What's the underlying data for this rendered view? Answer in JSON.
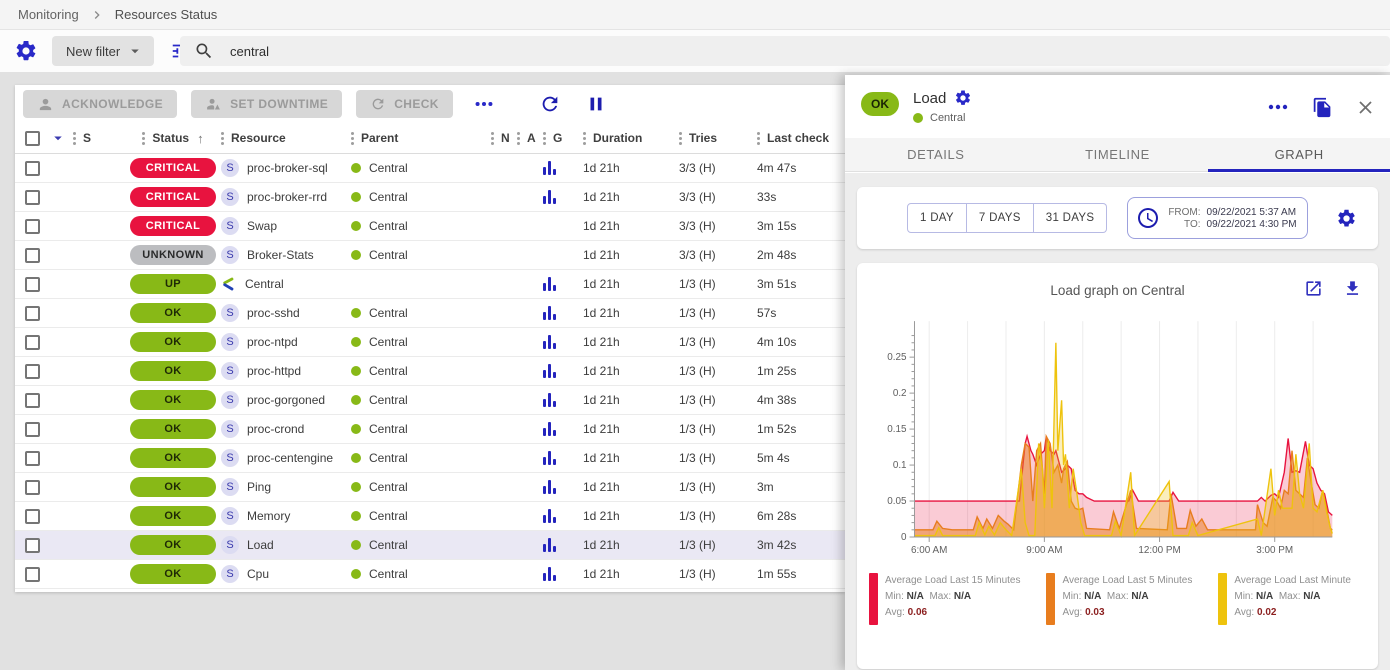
{
  "breadcrumb": {
    "items": [
      "Monitoring",
      "Resources Status"
    ]
  },
  "filter": {
    "new_filter_label": "New filter",
    "search_value": "central"
  },
  "toolbar": {
    "acknowledge": "ACKNOWLEDGE",
    "set_downtime": "SET DOWNTIME",
    "check": "CHECK",
    "more": "...",
    "icons": [
      "person-icon",
      "downtime-icon",
      "check-refresh-icon",
      "refresh-icon",
      "pause-icon"
    ]
  },
  "colors": {
    "primary_blue": "#2929c8",
    "green": "#88b917",
    "critical_red": "#e8133f",
    "unknown_gray": "#bcbdc0",
    "selected_row": "#eae8f4"
  },
  "table": {
    "headers": [
      "S",
      "Status",
      "Resource",
      "Parent",
      "N",
      "A",
      "G",
      "Duration",
      "Tries",
      "Last check"
    ],
    "sorted_column": "Status",
    "sort_direction": "asc",
    "rows": [
      {
        "status": "CRITICAL",
        "resource": "proc-broker-sql",
        "type": "service",
        "parent": "Central",
        "graph": true,
        "duration": "1d 21h",
        "tries": "3/3 (H)",
        "last_check": "4m 47s",
        "selected": false
      },
      {
        "status": "CRITICAL",
        "resource": "proc-broker-rrd",
        "type": "service",
        "parent": "Central",
        "graph": true,
        "duration": "1d 21h",
        "tries": "3/3 (H)",
        "last_check": "33s",
        "selected": false
      },
      {
        "status": "CRITICAL",
        "resource": "Swap",
        "type": "service",
        "parent": "Central",
        "graph": false,
        "duration": "1d 21h",
        "tries": "3/3 (H)",
        "last_check": "3m 15s",
        "selected": false
      },
      {
        "status": "UNKNOWN",
        "resource": "Broker-Stats",
        "type": "service",
        "parent": "Central",
        "graph": false,
        "duration": "1d 21h",
        "tries": "3/3 (H)",
        "last_check": "2m 48s",
        "selected": false
      },
      {
        "status": "UP",
        "resource": "Central",
        "type": "host",
        "parent": "",
        "graph": true,
        "duration": "1d 21h",
        "tries": "1/3 (H)",
        "last_check": "3m 51s",
        "selected": false
      },
      {
        "status": "OK",
        "resource": "proc-sshd",
        "type": "service",
        "parent": "Central",
        "graph": true,
        "duration": "1d 21h",
        "tries": "1/3 (H)",
        "last_check": "57s",
        "selected": false
      },
      {
        "status": "OK",
        "resource": "proc-ntpd",
        "type": "service",
        "parent": "Central",
        "graph": true,
        "duration": "1d 21h",
        "tries": "1/3 (H)",
        "last_check": "4m 10s",
        "selected": false
      },
      {
        "status": "OK",
        "resource": "proc-httpd",
        "type": "service",
        "parent": "Central",
        "graph": true,
        "duration": "1d 21h",
        "tries": "1/3 (H)",
        "last_check": "1m 25s",
        "selected": false
      },
      {
        "status": "OK",
        "resource": "proc-gorgoned",
        "type": "service",
        "parent": "Central",
        "graph": true,
        "duration": "1d 21h",
        "tries": "1/3 (H)",
        "last_check": "4m 38s",
        "selected": false
      },
      {
        "status": "OK",
        "resource": "proc-crond",
        "type": "service",
        "parent": "Central",
        "graph": true,
        "duration": "1d 21h",
        "tries": "1/3 (H)",
        "last_check": "1m 52s",
        "selected": false
      },
      {
        "status": "OK",
        "resource": "proc-centengine",
        "type": "service",
        "parent": "Central",
        "graph": true,
        "duration": "1d 21h",
        "tries": "1/3 (H)",
        "last_check": "5m 4s",
        "selected": false
      },
      {
        "status": "OK",
        "resource": "Ping",
        "type": "service",
        "parent": "Central",
        "graph": true,
        "duration": "1d 21h",
        "tries": "1/3 (H)",
        "last_check": "3m",
        "selected": false
      },
      {
        "status": "OK",
        "resource": "Memory",
        "type": "service",
        "parent": "Central",
        "graph": true,
        "duration": "1d 21h",
        "tries": "1/3 (H)",
        "last_check": "6m 28s",
        "selected": false
      },
      {
        "status": "OK",
        "resource": "Load",
        "type": "service",
        "parent": "Central",
        "graph": true,
        "duration": "1d 21h",
        "tries": "1/3 (H)",
        "last_check": "3m 42s",
        "selected": true
      },
      {
        "status": "OK",
        "resource": "Cpu",
        "type": "service",
        "parent": "Central",
        "graph": true,
        "duration": "1d 21h",
        "tries": "1/3 (H)",
        "last_check": "1m 55s",
        "selected": false
      }
    ]
  },
  "status_colors": {
    "CRITICAL": "#e8133f",
    "UNKNOWN": "#bcbdc0",
    "UP": "#88b917",
    "OK": "#88b917"
  },
  "panel": {
    "status": "OK",
    "title": "Load",
    "parent": "Central",
    "tabs": [
      "DETAILS",
      "TIMELINE",
      "GRAPH"
    ],
    "active_tab": "GRAPH",
    "time_buttons": [
      "1 DAY",
      "7 DAYS",
      "31 DAYS"
    ],
    "from_label": "FROM:",
    "from_value": "09/22/2021 5:37 AM",
    "to_label": "TO:",
    "to_value": "09/22/2021 4:30 PM"
  },
  "chart_data": {
    "type": "area",
    "title": "Load graph on Central",
    "x_ticks": [
      "6:00 AM",
      "9:00 AM",
      "12:00 PM",
      "3:00 PM"
    ],
    "x_tick_hours": [
      6,
      9,
      12,
      15
    ],
    "x_range_hours": [
      5.617,
      16.5
    ],
    "y_ticks": [
      0,
      0.05,
      0.1,
      0.15,
      0.2,
      0.25
    ],
    "ylim": [
      0,
      0.3
    ],
    "grid": true,
    "legend_position": "bottom",
    "stat_labels": {
      "min": "Min:",
      "max": "Max:",
      "avg": "Avg:"
    },
    "series": [
      {
        "name": "Average Load Last 15 Minutes",
        "color": "#e8133f",
        "fill_opacity": 0.22,
        "min": "N/A",
        "max": "N/A",
        "avg": "0.06",
        "points": [
          [
            5.62,
            0.05
          ],
          [
            8.35,
            0.05
          ],
          [
            8.45,
            0.105
          ],
          [
            8.5,
            0.13
          ],
          [
            8.55,
            0.14
          ],
          [
            8.65,
            0.12
          ],
          [
            8.7,
            0.115
          ],
          [
            8.8,
            0.1
          ],
          [
            8.9,
            0.115
          ],
          [
            9.0,
            0.12
          ],
          [
            9.05,
            0.14
          ],
          [
            9.15,
            0.12
          ],
          [
            9.25,
            0.115
          ],
          [
            9.3,
            0.12
          ],
          [
            9.4,
            0.1
          ],
          [
            9.45,
            0.09
          ],
          [
            9.55,
            0.095
          ],
          [
            9.6,
            0.1
          ],
          [
            9.7,
            0.095
          ],
          [
            9.8,
            0.065
          ],
          [
            9.9,
            0.06
          ],
          [
            10.0,
            0.06
          ],
          [
            10.1,
            0.055
          ],
          [
            10.3,
            0.05
          ],
          [
            11.2,
            0.05
          ],
          [
            11.3,
            0.065
          ],
          [
            11.45,
            0.05
          ],
          [
            12.25,
            0.05
          ],
          [
            12.35,
            0.062
          ],
          [
            12.5,
            0.05
          ],
          [
            14.55,
            0.05
          ],
          [
            14.65,
            0.055
          ],
          [
            14.75,
            0.05
          ],
          [
            14.9,
            0.058
          ],
          [
            15.0,
            0.06
          ],
          [
            15.1,
            0.055
          ],
          [
            15.25,
            0.09
          ],
          [
            15.35,
            0.137
          ],
          [
            15.45,
            0.09
          ],
          [
            15.55,
            0.092
          ],
          [
            15.65,
            0.09
          ],
          [
            15.8,
            0.133
          ],
          [
            15.9,
            0.1
          ],
          [
            16.0,
            0.095
          ],
          [
            16.1,
            0.075
          ],
          [
            16.2,
            0.065
          ],
          [
            16.3,
            0.06
          ],
          [
            16.4,
            0.035
          ],
          [
            16.5,
            0.03
          ]
        ]
      },
      {
        "name": "Average Load Last 5 Minutes",
        "color": "#e87d1e",
        "fill_opacity": 0.5,
        "min": "N/A",
        "max": "N/A",
        "avg": "0.03",
        "points": [
          [
            5.62,
            0.01
          ],
          [
            6.1,
            0.01
          ],
          [
            6.2,
            0.022
          ],
          [
            6.35,
            0.012
          ],
          [
            6.6,
            0.01
          ],
          [
            7.15,
            0.01
          ],
          [
            7.25,
            0.028
          ],
          [
            7.4,
            0.012
          ],
          [
            7.5,
            0.025
          ],
          [
            7.65,
            0.012
          ],
          [
            7.8,
            0.03
          ],
          [
            7.95,
            0.022
          ],
          [
            8.05,
            0.018
          ],
          [
            8.2,
            0.01
          ],
          [
            8.4,
            0.1
          ],
          [
            8.5,
            0.13
          ],
          [
            8.6,
            0.125
          ],
          [
            8.7,
            0.05
          ],
          [
            8.8,
            0.12
          ],
          [
            8.9,
            0.13
          ],
          [
            9.0,
            0.06
          ],
          [
            9.05,
            0.14
          ],
          [
            9.15,
            0.13
          ],
          [
            9.25,
            0.09
          ],
          [
            9.35,
            0.1
          ],
          [
            9.45,
            0.075
          ],
          [
            9.5,
            0.095
          ],
          [
            9.6,
            0.105
          ],
          [
            9.7,
            0.05
          ],
          [
            9.8,
            0.04
          ],
          [
            9.9,
            0.038
          ],
          [
            10.0,
            0.04
          ],
          [
            10.1,
            0.012
          ],
          [
            10.7,
            0.01
          ],
          [
            10.8,
            0.035
          ],
          [
            10.95,
            0.012
          ],
          [
            11.25,
            0.065
          ],
          [
            11.4,
            0.012
          ],
          [
            12.2,
            0.01
          ],
          [
            12.3,
            0.06
          ],
          [
            12.45,
            0.012
          ],
          [
            12.7,
            0.012
          ],
          [
            12.8,
            0.037
          ],
          [
            12.95,
            0.015
          ],
          [
            13.1,
            0.025
          ],
          [
            13.25,
            0.01
          ],
          [
            14.5,
            0.01
          ],
          [
            14.55,
            0.045
          ],
          [
            14.7,
            0.02
          ],
          [
            14.8,
            0.015
          ],
          [
            14.95,
            0.055
          ],
          [
            15.05,
            0.05
          ],
          [
            15.15,
            0.04
          ],
          [
            15.25,
            0.065
          ],
          [
            15.35,
            0.06
          ],
          [
            15.45,
            0.12
          ],
          [
            15.55,
            0.065
          ],
          [
            15.65,
            0.06
          ],
          [
            15.75,
            0.055
          ],
          [
            15.85,
            0.11
          ],
          [
            15.95,
            0.075
          ],
          [
            16.05,
            0.045
          ],
          [
            16.15,
            0.04
          ],
          [
            16.25,
            0.065
          ],
          [
            16.35,
            0.04
          ],
          [
            16.45,
            0.012
          ],
          [
            16.5,
            0.01
          ]
        ]
      },
      {
        "name": "Average Load Last Minute",
        "color": "#eec30d",
        "fill_opacity": 0.28,
        "min": "N/A",
        "max": "N/A",
        "avg": "0.02",
        "points": [
          [
            5.62,
            0.002
          ],
          [
            6.15,
            0.002
          ],
          [
            6.25,
            0.013
          ],
          [
            6.35,
            0.002
          ],
          [
            7.2,
            0.002
          ],
          [
            7.3,
            0.02
          ],
          [
            7.45,
            0.003
          ],
          [
            7.55,
            0.015
          ],
          [
            7.7,
            0.003
          ],
          [
            7.85,
            0.02
          ],
          [
            8.0,
            0.01
          ],
          [
            8.15,
            0.002
          ],
          [
            8.4,
            0.095
          ],
          [
            8.5,
            0.02
          ],
          [
            8.6,
            0.002
          ],
          [
            8.75,
            0.002
          ],
          [
            8.85,
            0.13
          ],
          [
            8.95,
            0.095
          ],
          [
            9.0,
            0.04
          ],
          [
            9.1,
            0.135
          ],
          [
            9.2,
            0.04
          ],
          [
            9.3,
            0.27
          ],
          [
            9.35,
            0.12
          ],
          [
            9.45,
            0.19
          ],
          [
            9.5,
            0.1
          ],
          [
            9.55,
            0.115
          ],
          [
            9.65,
            0.04
          ],
          [
            9.75,
            0.095
          ],
          [
            9.85,
            0.06
          ],
          [
            9.95,
            0.02
          ],
          [
            10.05,
            0.002
          ],
          [
            10.75,
            0.002
          ],
          [
            10.85,
            0.022
          ],
          [
            11.0,
            0.002
          ],
          [
            11.25,
            0.09
          ],
          [
            11.35,
            0.002
          ],
          [
            12.25,
            0.077
          ],
          [
            12.35,
            0.002
          ],
          [
            12.75,
            0.002
          ],
          [
            12.85,
            0.02
          ],
          [
            13.0,
            0.002
          ],
          [
            14.55,
            0.025
          ],
          [
            14.65,
            0.002
          ],
          [
            14.9,
            0.095
          ],
          [
            15.0,
            0.03
          ],
          [
            15.1,
            0.065
          ],
          [
            15.2,
            0.04
          ],
          [
            15.3,
            0.04
          ],
          [
            15.45,
            0.04
          ],
          [
            15.55,
            0.115
          ],
          [
            15.65,
            0.06
          ],
          [
            15.75,
            0.04
          ],
          [
            15.9,
            0.13
          ],
          [
            16.0,
            0.04
          ],
          [
            16.1,
            0.035
          ],
          [
            16.25,
            0.065
          ],
          [
            16.35,
            0.035
          ],
          [
            16.45,
            0.012
          ],
          [
            16.5,
            0.005
          ]
        ]
      }
    ]
  }
}
